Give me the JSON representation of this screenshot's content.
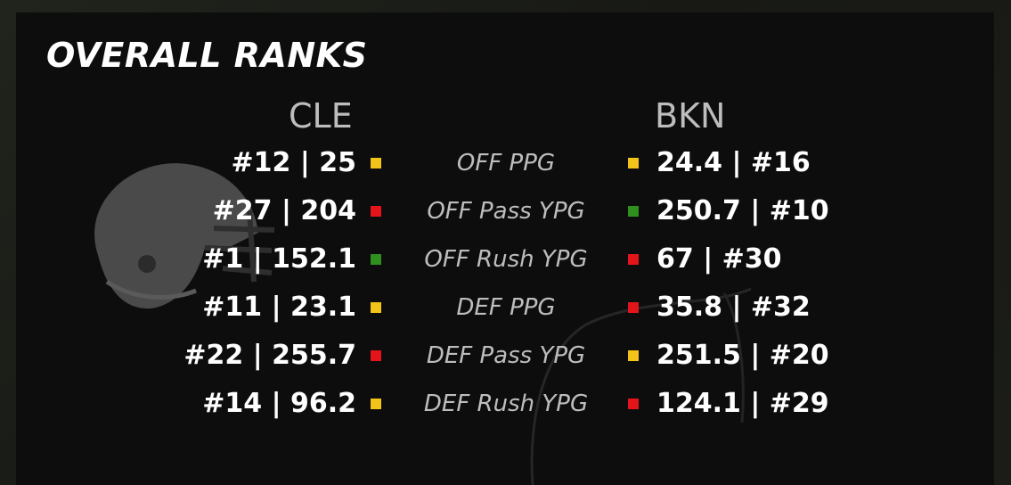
{
  "title": "OVERALL RANKS",
  "teams": {
    "left": "CLE",
    "right": "BKN"
  },
  "indicator_colors": {
    "yellow": "#f2c318",
    "red": "#e3141a",
    "green": "#2f8f1f"
  },
  "rows": [
    {
      "category": "OFF PPG",
      "left": "#12 | 25",
      "left_indicator": "yellow",
      "right": "24.4 | #16",
      "right_indicator": "yellow"
    },
    {
      "category": "OFF Pass YPG",
      "left": "#27 | 204",
      "left_indicator": "red",
      "right": "250.7 | #10",
      "right_indicator": "green"
    },
    {
      "category": "OFF Rush YPG",
      "left": "#1 | 152.1",
      "left_indicator": "green",
      "right": "67 | #30",
      "right_indicator": "red"
    },
    {
      "category": "DEF PPG",
      "left": "#11 | 23.1",
      "left_indicator": "yellow",
      "right": "35.8 | #32",
      "right_indicator": "red"
    },
    {
      "category": "DEF Pass YPG",
      "left": "#22 | 255.7",
      "left_indicator": "red",
      "right": "251.5 | #20",
      "right_indicator": "yellow"
    },
    {
      "category": "DEF Rush YPG",
      "left": "#14 | 96.2",
      "left_indicator": "yellow",
      "right": "124.1 | #29",
      "right_indicator": "red"
    }
  ],
  "icons": {
    "team_logo": "football-helmet-icon"
  }
}
